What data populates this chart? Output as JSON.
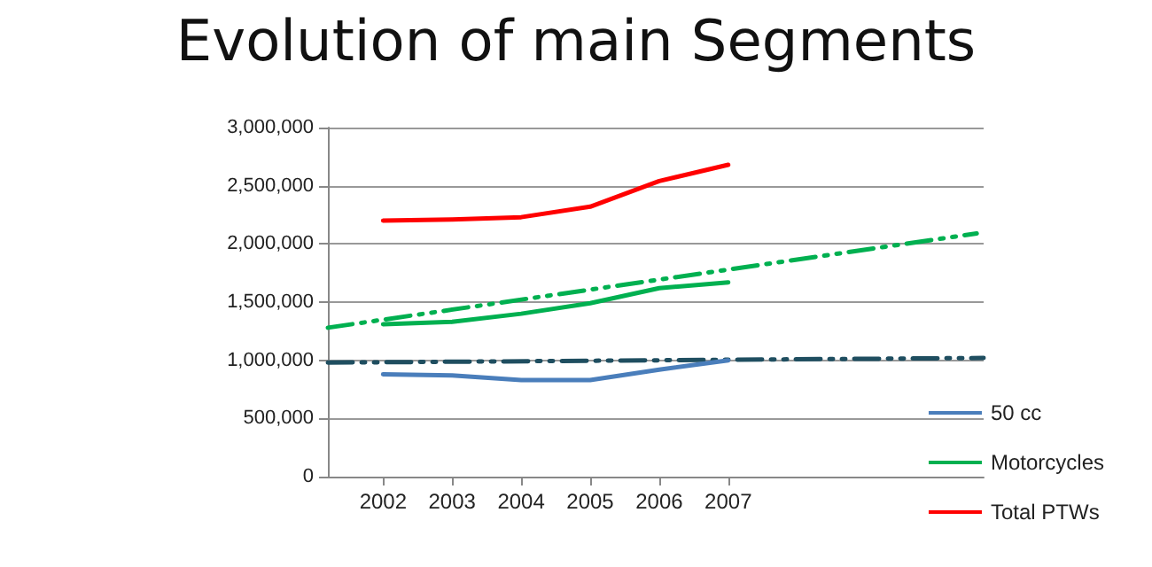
{
  "chart_data": {
    "type": "line",
    "title": "Evolution of main Segments",
    "x": [
      2002,
      2003,
      2004,
      2005,
      2006,
      2007
    ],
    "series": [
      {
        "name": "50 cc",
        "color": "#4a7ebb",
        "values": [
          880000,
          870000,
          830000,
          830000,
          920000,
          1000000
        ]
      },
      {
        "name": "Motorcycles",
        "color": "#00b050",
        "values": [
          1310000,
          1330000,
          1400000,
          1490000,
          1620000,
          1670000
        ]
      },
      {
        "name": "Total PTWs",
        "color": "#ff0000",
        "values": [
          2200000,
          2210000,
          2230000,
          2320000,
          2540000,
          2680000
        ]
      },
      {
        "type": "line",
        "x": [
          2001.2,
          2010.6
        ],
        "color": "#00b050",
        "line_style": "dashed",
        "values": [
          1280000,
          2090000
        ]
      },
      {
        "type": "line",
        "x": [
          2001.2,
          2010.7
        ],
        "color": "#1f4e60",
        "line_style": "dashed",
        "values": [
          980000,
          1020000
        ]
      }
    ],
    "xlim": [
      2001.2,
      2010.7
    ],
    "xticks": [
      2002,
      2003,
      2004,
      2005,
      2006,
      2007
    ],
    "ylim": [
      0,
      3000000
    ],
    "yticks": [
      0,
      {
        "value": 500000,
        "label": "500,000"
      },
      {
        "value": 1000000,
        "label": "1,000,000"
      },
      {
        "value": 1500000,
        "label": "1,500,000"
      },
      {
        "value": 2000000,
        "label": "2,000,000"
      },
      {
        "value": 2500000,
        "label": "2,500,000"
      },
      {
        "value": 3000000,
        "label": "3,000,000"
      }
    ],
    "grid": "y",
    "legend": "right",
    "marker": "none",
    "line_style": "solid"
  }
}
